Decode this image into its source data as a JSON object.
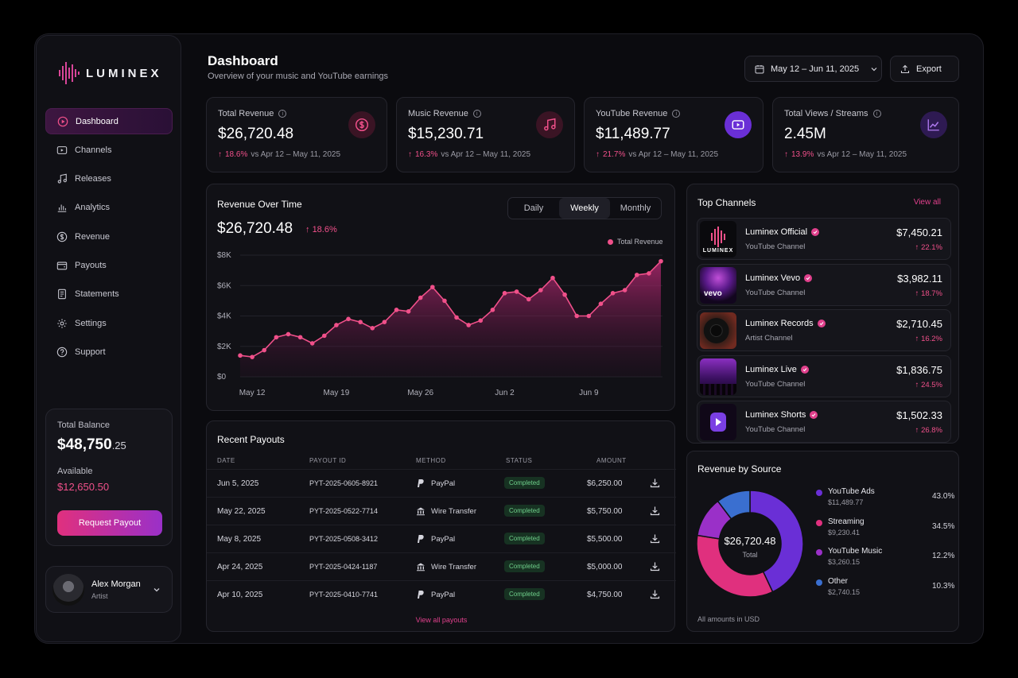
{
  "brand": {
    "name": "LUMINEX"
  },
  "sidebar": {
    "items": [
      {
        "label": "Dashboard",
        "icon": "play-circle-icon",
        "active": true
      },
      {
        "label": "Channels",
        "icon": "video-icon",
        "active": false
      },
      {
        "label": "Releases",
        "icon": "music-note-icon",
        "active": false
      },
      {
        "label": "Analytics",
        "icon": "bar-chart-icon",
        "active": false
      },
      {
        "label": "Revenue",
        "icon": "dollar-circle-icon",
        "active": false
      },
      {
        "label": "Payouts",
        "icon": "wallet-icon",
        "active": false
      },
      {
        "label": "Statements",
        "icon": "document-icon",
        "active": false
      },
      {
        "label": "Settings",
        "icon": "gear-icon",
        "active": false
      },
      {
        "label": "Support",
        "icon": "help-circle-icon",
        "active": false
      }
    ],
    "balance": {
      "label": "Total Balance",
      "value_main": "$48,750",
      "value_cents": ".25",
      "available_label": "Available",
      "available_value": "$12,650.50",
      "button_label": "Request Payout"
    },
    "user": {
      "name": "Alex Morgan",
      "role": "Artist"
    }
  },
  "header": {
    "title": "Dashboard",
    "subtitle": "Overview of your music and YouTube earnings",
    "date_range": "May 12 – Jun 11, 2025",
    "export_label": "Export"
  },
  "kpis": [
    {
      "label": "Total Revenue",
      "value": "$26,720.48",
      "delta": "18.6%",
      "compare": "vs Apr 12 – May 11, 2025",
      "icon": "dollar-icon",
      "icon_color": "#e0408c"
    },
    {
      "label": "Music Revenue",
      "value": "$15,230.71",
      "delta": "16.3%",
      "compare": "vs Apr 12 – May 11, 2025",
      "icon": "music-note-icon",
      "icon_color": "#e0408c"
    },
    {
      "label": "YouTube Revenue",
      "value": "$11,489.77",
      "delta": "21.7%",
      "compare": "vs Apr 12 – May 11, 2025",
      "icon": "play-icon",
      "icon_color": "#7b3fe4"
    },
    {
      "label": "Total Views / Streams",
      "value": "2.45M",
      "delta": "13.9%",
      "compare": "vs Apr 12 – May 11, 2025",
      "icon": "trend-up-icon",
      "icon_color": "#7b3fe4"
    }
  ],
  "revenue_chart": {
    "title": "Revenue Over Time",
    "value": "$26,720.48",
    "delta": "18.6%",
    "tabs": [
      "Daily",
      "Weekly",
      "Monthly"
    ],
    "active_tab": "Weekly",
    "legend": "Total Revenue"
  },
  "chart_data": {
    "type": "area",
    "title": "Revenue Over Time",
    "series": [
      {
        "name": "Total Revenue",
        "values": [
          1400,
          1300,
          1750,
          2600,
          2800,
          2600,
          2200,
          2700,
          3400,
          3800,
          3600,
          3200,
          3600,
          4400,
          4300,
          5200,
          5900,
          5000,
          3900,
          3400,
          3700,
          4400,
          5500,
          5600,
          5100,
          5700,
          6500,
          5400,
          4000,
          4000,
          4800,
          5500,
          5700,
          6700,
          6800,
          7600
        ]
      }
    ],
    "x_ticks": [
      "May 12",
      "May 19",
      "May 26",
      "Jun 2",
      "Jun 9"
    ],
    "y_ticks": [
      "$0",
      "$2K",
      "$4K",
      "$6K",
      "$8K"
    ],
    "ylim": [
      0,
      8000
    ],
    "grid": true,
    "legend_position": "top-right",
    "color": "#f0508a"
  },
  "payouts": {
    "title": "Recent Payouts",
    "columns": [
      "DATE",
      "PAYOUT ID",
      "METHOD",
      "STATUS",
      "AMOUNT"
    ],
    "rows": [
      {
        "date": "Jun 5, 2025",
        "id": "PYT-2025-0605-8921",
        "method": "PayPal",
        "method_icon": "paypal-icon",
        "status": "Completed",
        "amount": "$6,250.00"
      },
      {
        "date": "May 22, 2025",
        "id": "PYT-2025-0522-7714",
        "method": "Wire Transfer",
        "method_icon": "bank-icon",
        "status": "Completed",
        "amount": "$5,750.00"
      },
      {
        "date": "May 8, 2025",
        "id": "PYT-2025-0508-3412",
        "method": "PayPal",
        "method_icon": "paypal-icon",
        "status": "Completed",
        "amount": "$5,500.00"
      },
      {
        "date": "Apr 24, 2025",
        "id": "PYT-2025-0424-1187",
        "method": "Wire Transfer",
        "method_icon": "bank-icon",
        "status": "Completed",
        "amount": "$5,000.00"
      },
      {
        "date": "Apr 10, 2025",
        "id": "PYT-2025-0410-7741",
        "method": "PayPal",
        "method_icon": "paypal-icon",
        "status": "Completed",
        "amount": "$4,750.00"
      }
    ],
    "view_all": "View all payouts"
  },
  "top_channels": {
    "title": "Top Channels",
    "view_all": "View all",
    "items": [
      {
        "name": "Luminex Official",
        "type": "YouTube Channel",
        "amount": "$7,450.21",
        "delta": "22.1%",
        "thumb_text": "LUMINEX"
      },
      {
        "name": "Luminex Vevo",
        "type": "YouTube Channel",
        "amount": "$3,982.11",
        "delta": "18.7%",
        "thumb_text": "vevo"
      },
      {
        "name": "Luminex Records",
        "type": "Artist Channel",
        "amount": "$2,710.45",
        "delta": "16.2%",
        "thumb_text": ""
      },
      {
        "name": "Luminex Live",
        "type": "YouTube Channel",
        "amount": "$1,836.75",
        "delta": "24.5%",
        "thumb_text": ""
      },
      {
        "name": "Luminex Shorts",
        "type": "YouTube Channel",
        "amount": "$1,502.33",
        "delta": "26.8%",
        "thumb_text": ""
      }
    ]
  },
  "revenue_by_source": {
    "title": "Revenue by Source",
    "total": "$26,720.48",
    "total_label": "Total",
    "note": "All amounts in USD",
    "sources": [
      {
        "name": "YouTube Ads",
        "value": "$11,489.77",
        "pct": "43.0%",
        "share": 43.0,
        "color": "#6a2fd6"
      },
      {
        "name": "Streaming",
        "value": "$9,230.41",
        "pct": "34.5%",
        "share": 34.5,
        "color": "#e0307e"
      },
      {
        "name": "YouTube Music",
        "value": "$3,260.15",
        "pct": "12.2%",
        "share": 12.2,
        "color": "#9a30c8"
      },
      {
        "name": "Other",
        "value": "$2,740.15",
        "pct": "10.3%",
        "share": 10.3,
        "color": "#3a6fd0"
      }
    ]
  }
}
